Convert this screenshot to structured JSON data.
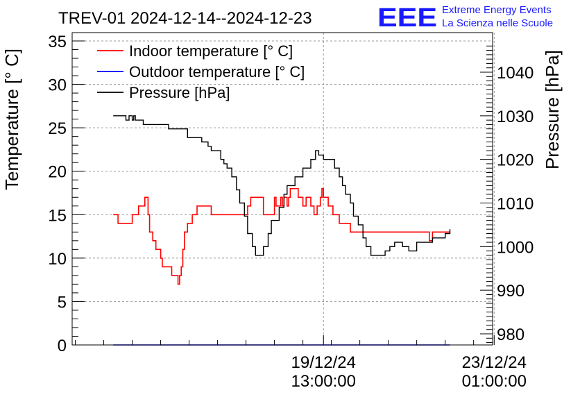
{
  "chart_data": {
    "type": "line",
    "title": "TREV-01 2024-12-14--2024-12-23",
    "ylabel_left": "Temperature [° C]",
    "ylabel_right": "Pressure [hPa]",
    "xlabel": "",
    "x_units": "hours since 2024-12-14 00:00",
    "xlim": [
      -26,
      240
    ],
    "ylim_left": [
      0,
      35
    ],
    "ylim_right": [
      976,
      1047
    ],
    "grid": true,
    "legend_position": "top-left",
    "x_ticks": [
      {
        "x": 133,
        "date": "19/12/24",
        "time": "13:00:00"
      },
      {
        "x": 241,
        "date": "23/12/24",
        "time": "01:00:00"
      }
    ],
    "y_ticks_left": [
      0,
      5,
      10,
      15,
      20,
      25,
      30,
      35
    ],
    "y_ticks_right": [
      980,
      990,
      1000,
      1010,
      1020,
      1030,
      1040
    ],
    "series": [
      {
        "name": "Indoor temperature [° C]",
        "color": "#ff0000",
        "axis": "left",
        "x": [
          0,
          2,
          3,
          8,
          9,
          11,
          12,
          16,
          17,
          18,
          19,
          20,
          21,
          22,
          23,
          25,
          27,
          30,
          31,
          36,
          37,
          40,
          41,
          42,
          43,
          44,
          45,
          47,
          48,
          50,
          51,
          53,
          55,
          56,
          62,
          64,
          68,
          75,
          85,
          87,
          90,
          95,
          97,
          102,
          103,
          106,
          107,
          108,
          109,
          110,
          111,
          112,
          114,
          115,
          117,
          120,
          122,
          125,
          127,
          129,
          131,
          132,
          133,
          134,
          136,
          137,
          139,
          141,
          143,
          145,
          150,
          153,
          158,
          165,
          168,
          182,
          190,
          198,
          200,
          201,
          202,
          212,
          213
        ],
        "values": [
          15,
          15,
          14,
          14,
          14,
          14,
          15,
          16,
          16,
          16,
          16,
          17,
          17,
          15,
          13,
          12,
          11,
          10,
          9,
          9,
          8,
          8,
          7,
          8,
          9,
          11,
          13,
          14,
          14,
          15,
          15,
          16,
          16,
          16,
          15,
          15,
          15,
          15,
          16,
          17,
          17,
          15,
          15,
          17,
          16,
          17,
          16,
          17,
          17,
          16,
          17,
          18,
          18,
          18,
          17,
          16,
          17,
          16,
          15,
          16,
          17,
          18,
          17,
          17,
          16,
          16,
          15,
          15,
          14,
          14,
          13,
          13,
          13,
          13,
          13,
          13,
          13,
          13,
          12,
          12,
          13,
          13,
          13
        ]
      },
      {
        "name": "Outdoor temperature [° C]",
        "color": "#0000ff",
        "axis": "left",
        "x": [
          0,
          213
        ],
        "values": [
          0,
          0
        ]
      },
      {
        "name": "Pressure [hPa]",
        "color": "#000000",
        "axis": "right",
        "x": [
          0,
          4,
          8,
          10,
          12,
          13,
          14,
          17,
          19,
          25,
          30,
          35,
          42,
          45,
          47,
          55,
          56,
          60,
          62,
          68,
          70,
          72,
          75,
          78,
          80,
          83,
          85,
          88,
          90,
          93,
          95,
          98,
          100,
          105,
          108,
          110,
          115,
          120,
          125,
          128,
          130,
          133,
          135,
          138,
          140,
          143,
          145,
          147,
          150,
          152,
          155,
          158,
          160,
          163,
          165,
          168,
          172,
          175,
          178,
          180,
          183,
          185,
          187,
          190,
          192,
          195,
          197,
          200,
          202,
          204,
          208,
          210,
          213
        ],
        "values": [
          1030,
          1030,
          1029,
          1030,
          1029,
          1030,
          1029,
          1029,
          1028,
          1028,
          1028,
          1027,
          1027,
          1027,
          1025,
          1025,
          1024,
          1023,
          1022,
          1020,
          1019,
          1018,
          1016,
          1013,
          1010,
          1007,
          1003,
          1000,
          998,
          998,
          1000,
          1003,
          1006,
          1009,
          1012,
          1014,
          1016,
          1018,
          1020,
          1022,
          1021,
          1020,
          1020,
          1020,
          1018,
          1016,
          1014,
          1012,
          1010,
          1007,
          1005,
          1002,
          1000,
          998,
          998,
          998,
          999,
          1000,
          1001,
          1001,
          1000,
          1000,
          999,
          999,
          1001,
          1001,
          1001,
          1001,
          1002,
          1002,
          1002,
          1003,
          1004
        ]
      }
    ]
  },
  "logo": {
    "letters": "EEE",
    "line1": "Extreme Energy Events",
    "line2": "La Scienza nelle Scuole"
  }
}
